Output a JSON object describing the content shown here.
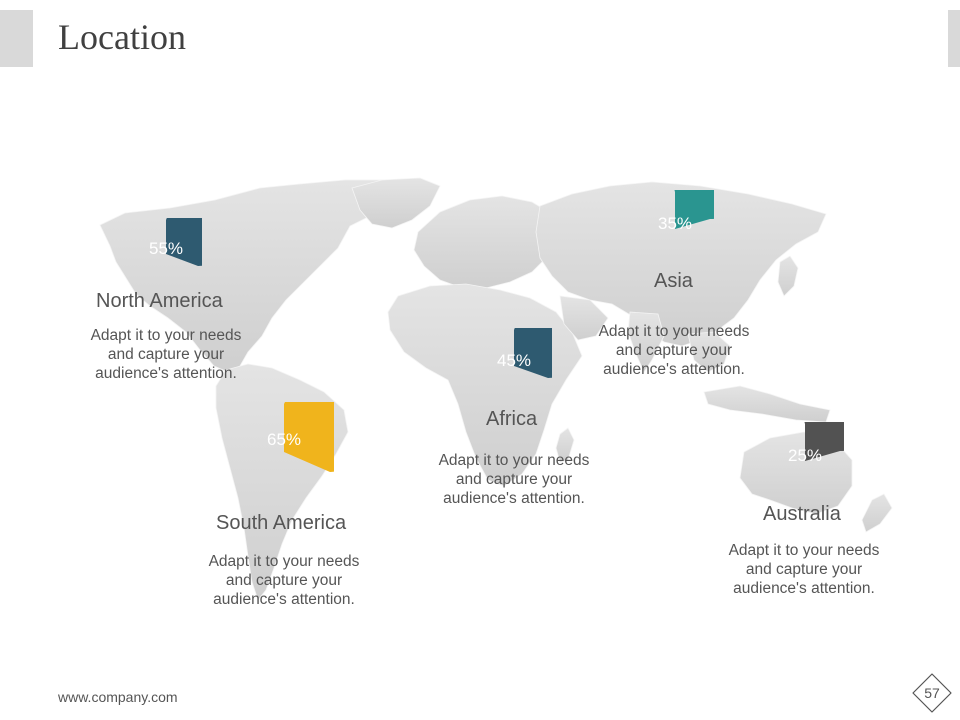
{
  "slide": {
    "title": "Location",
    "footer_url": "www.company.com",
    "page_number": "57"
  },
  "colors": {
    "north_america": "#2e5a70",
    "asia": "#2a9590",
    "africa": "#2e5a70",
    "south_america": "#f0b41c",
    "australia": "#525252",
    "map": "#dcdcdc"
  },
  "regions": [
    {
      "name": "North America",
      "percent": "55%",
      "description": "Adapt it to your needs and capture your audience's attention."
    },
    {
      "name": "Asia",
      "percent": "35%",
      "description": "Adapt it to your needs and capture your audience's attention."
    },
    {
      "name": "Africa",
      "percent": "45%",
      "description": "Adapt it to your needs and capture your audience's attention."
    },
    {
      "name": "South America",
      "percent": "65%",
      "description": "Adapt it to your needs and capture your audience's attention."
    },
    {
      "name": "Australia",
      "percent": "25%",
      "description": "Adapt it to your needs and capture your audience's attention."
    }
  ]
}
